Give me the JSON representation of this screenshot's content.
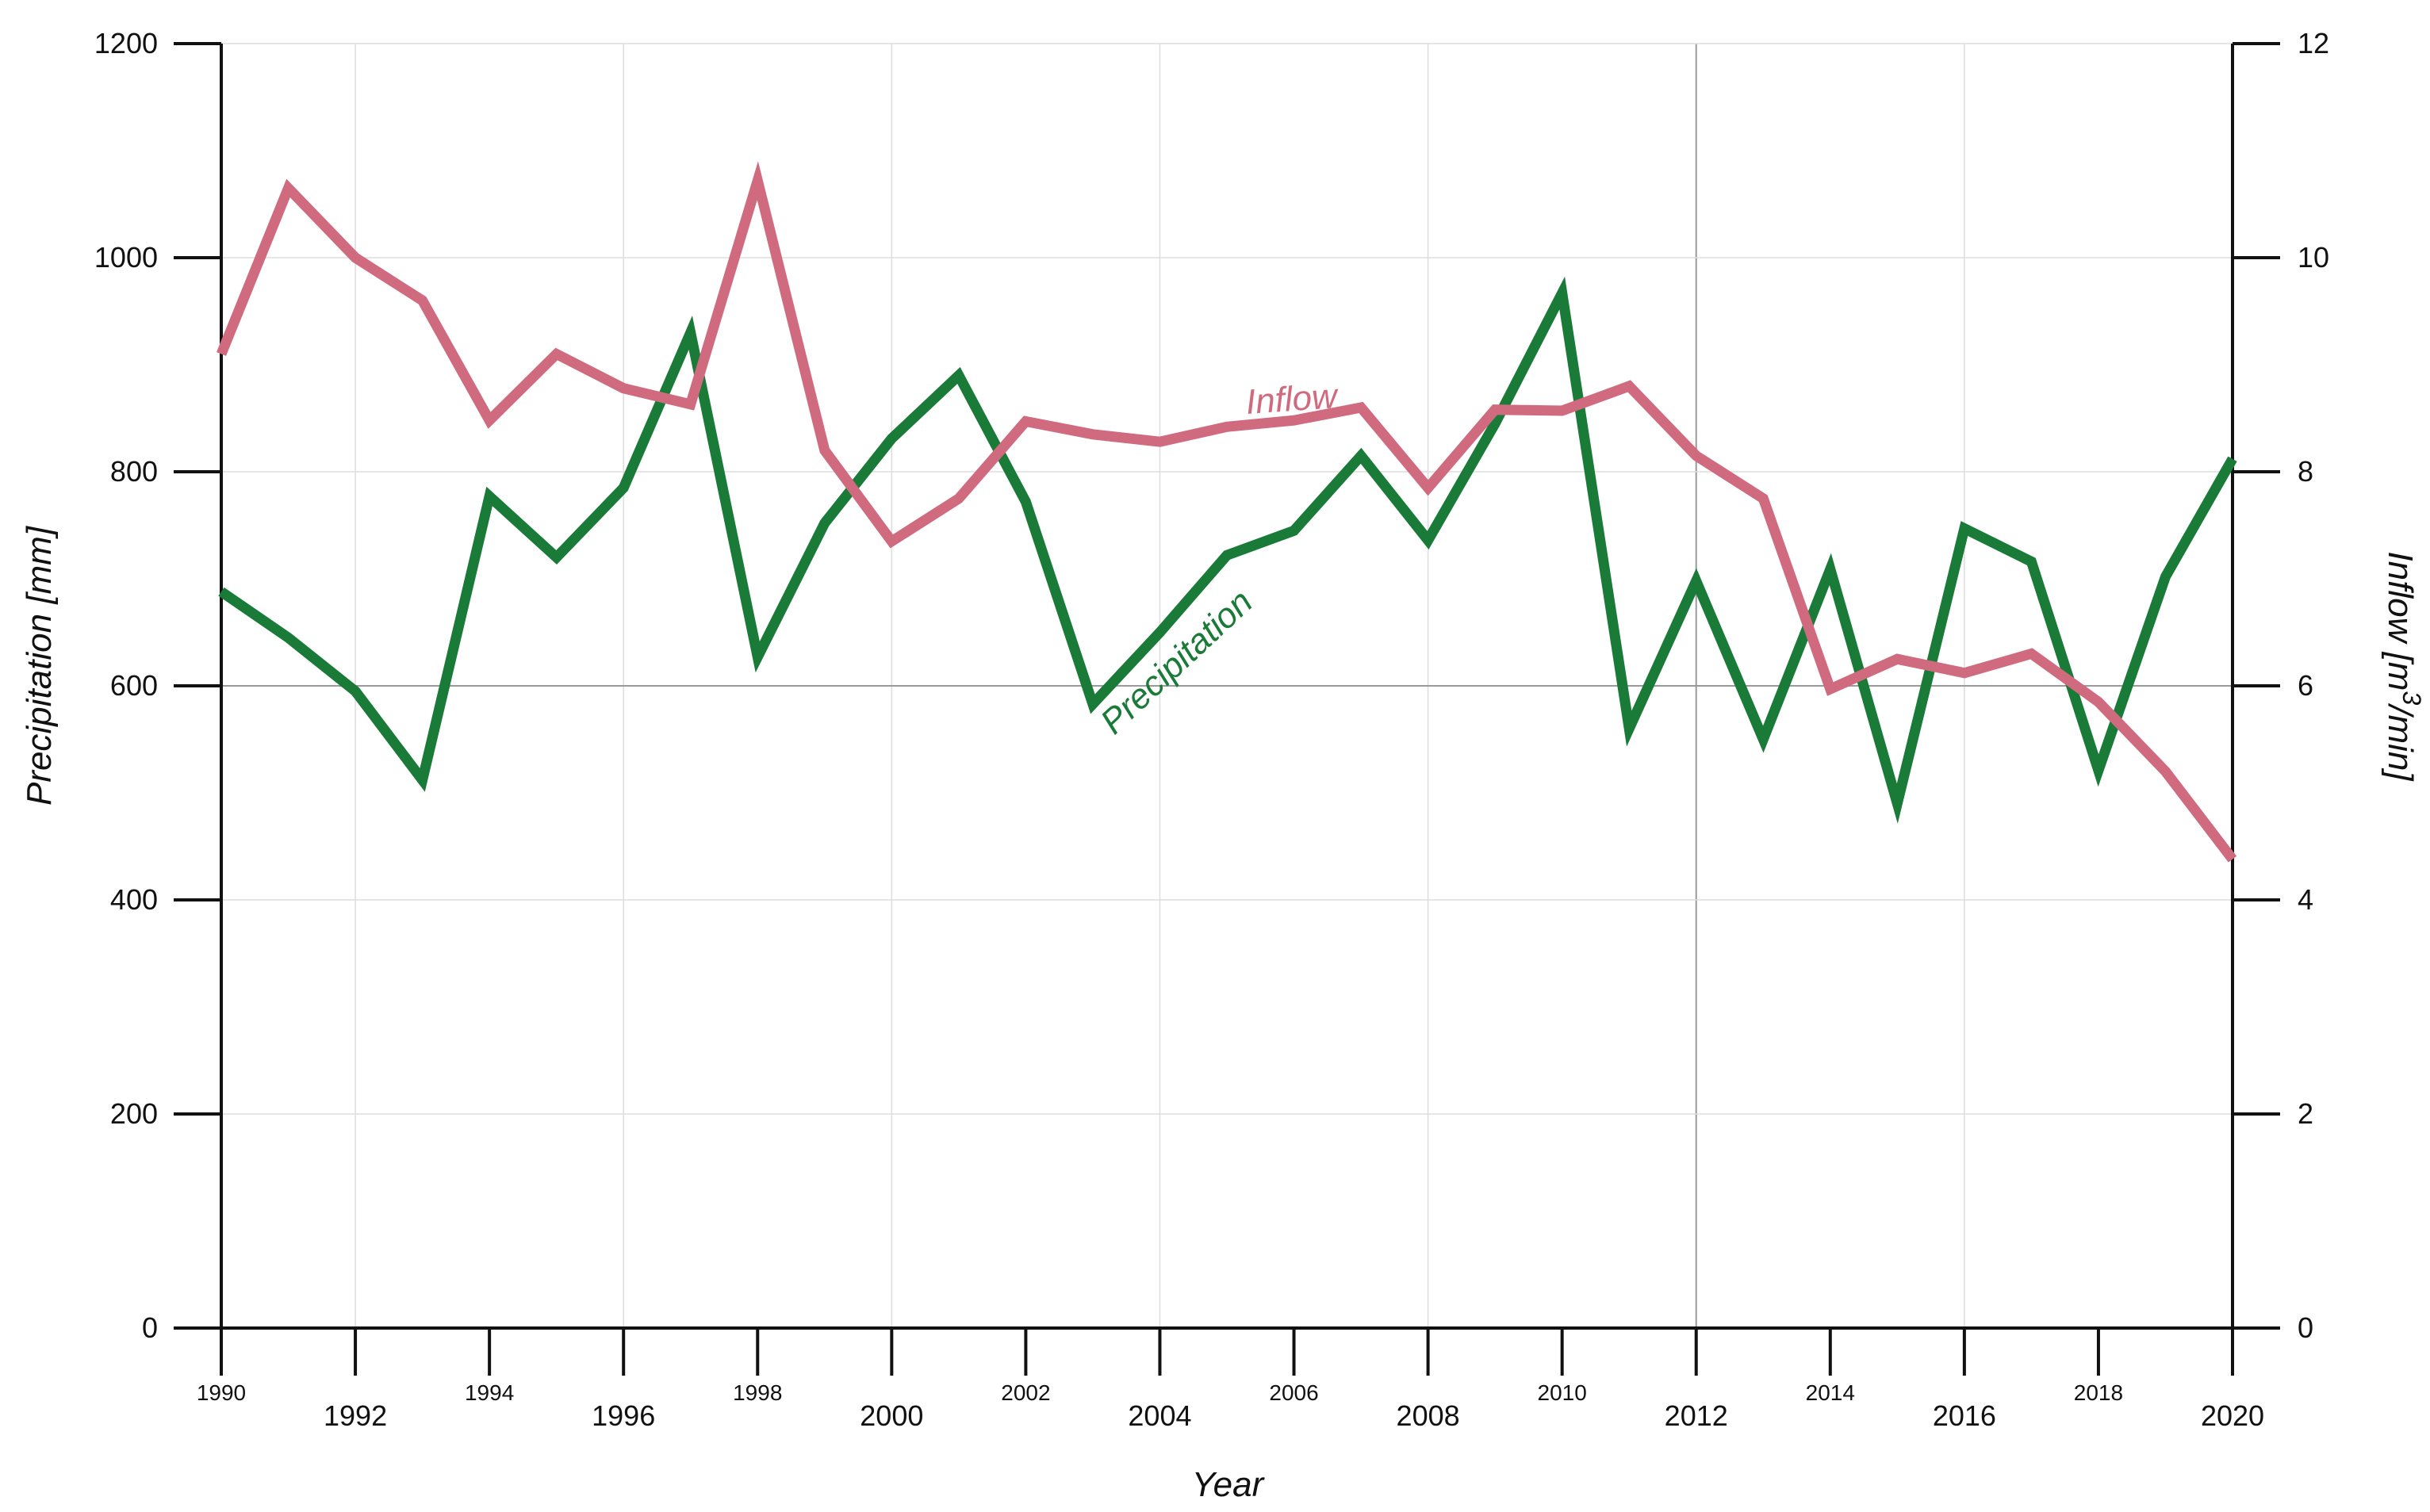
{
  "chart_data": {
    "type": "line",
    "xlabel": "Year",
    "ylabel": "Precipitation [mm]",
    "ylabel_right": "Inflow [m3/min]",
    "ylim": [
      0,
      1200
    ],
    "ylim_right": [
      0,
      12
    ],
    "xlim": [
      1990,
      2020
    ],
    "grid": true,
    "x_ticks_major": [
      "1992",
      "1996",
      "2000",
      "2004",
      "2008",
      "2012",
      "2016",
      "2020"
    ],
    "x_ticks_minor": [
      "1990",
      "1994",
      "1998",
      "2002",
      "2006",
      "2010",
      "2014",
      "2018"
    ],
    "y_ticks_left": [
      "0",
      "200",
      "400",
      "600",
      "800",
      "1000",
      "1200"
    ],
    "y_ticks_right": [
      "0",
      "2",
      "4",
      "6",
      "8",
      "10",
      "12"
    ],
    "x": [
      1990,
      1991,
      1992,
      1993,
      1994,
      1995,
      1996,
      1997,
      1998,
      1999,
      2000,
      2001,
      2002,
      2003,
      2004,
      2005,
      2006,
      2007,
      2008,
      2009,
      2010,
      2011,
      2012,
      2013,
      2014,
      2015,
      2016,
      2017,
      2018,
      2019,
      2020
    ],
    "series": [
      {
        "name": "Precipitation",
        "axis": "left",
        "color": "#1a7a38",
        "values": [
          688,
          645,
          595,
          512,
          777,
          720,
          785,
          930,
          627,
          752,
          831,
          890,
          772,
          583,
          650,
          722,
          745,
          815,
          736,
          845,
          967,
          560,
          698,
          550,
          709,
          490,
          747,
          716,
          521,
          702,
          812
        ]
      },
      {
        "name": "Inflow",
        "axis": "right",
        "color": "#d06a7e",
        "values": [
          9.1,
          10.65,
          10.0,
          9.6,
          8.48,
          9.1,
          8.78,
          8.63,
          10.72,
          8.2,
          7.35,
          7.75,
          8.47,
          8.35,
          8.28,
          8.42,
          8.48,
          8.6,
          7.85,
          8.58,
          8.57,
          8.8,
          8.15,
          7.75,
          5.97,
          6.25,
          6.12,
          6.3,
          5.85,
          5.2,
          4.38
        ]
      }
    ]
  }
}
